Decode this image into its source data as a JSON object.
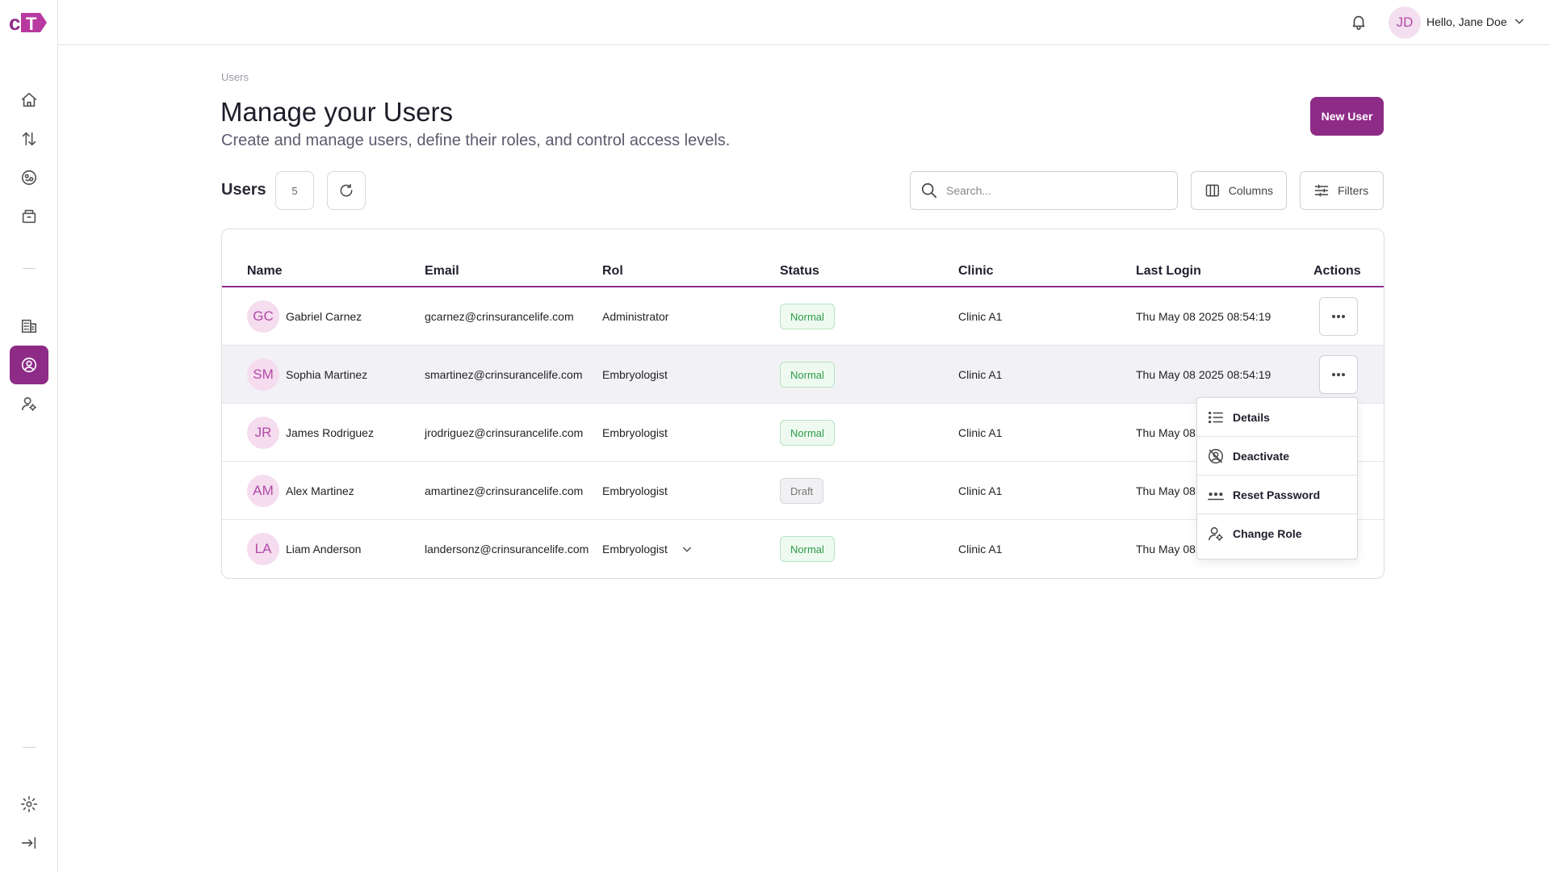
{
  "brand": {
    "logo_text": "cT",
    "accent": "#8e2b87"
  },
  "sidebar": {
    "items": [
      {
        "icon": "home-icon",
        "active": false
      },
      {
        "icon": "transfer-icon",
        "active": false
      },
      {
        "icon": "embryo-icon",
        "active": false
      },
      {
        "icon": "storage-icon",
        "active": false
      },
      {
        "icon": "building-icon",
        "active": false
      },
      {
        "icon": "user-circle-icon",
        "active": true
      },
      {
        "icon": "user-settings-icon",
        "active": false
      }
    ],
    "bottom": [
      {
        "icon": "gear-icon"
      },
      {
        "icon": "collapse-icon"
      }
    ]
  },
  "topbar": {
    "user_initials": "JD",
    "greeting": "Hello, Jane Doe"
  },
  "header": {
    "breadcrumb": "Users",
    "title": "Manage your Users",
    "subtitle": "Create and manage users, define their roles, and control access levels.",
    "new_user_label": "New User"
  },
  "toolbar": {
    "users_label": "Users",
    "count": "5",
    "search_placeholder": "Search...",
    "columns_label": "Columns",
    "filters_label": "Filters"
  },
  "table": {
    "headers": [
      "Name",
      "Email",
      "Rol",
      "Status",
      "Clinic",
      "Last Login",
      "Actions"
    ],
    "rows": [
      {
        "initials": "GC",
        "name": "Gabriel Carnez",
        "email": "gcarnez@crinsurancelife.com",
        "role": "Administrator",
        "status": "Normal",
        "clinic": "Clinic A1",
        "last_login": "Thu May 08 2025 08:54:19"
      },
      {
        "initials": "SM",
        "name": "Sophia Martinez",
        "email": "smartinez@crinsurancelife.com",
        "role": "Embryologist",
        "status": "Normal",
        "clinic": "Clinic A1",
        "last_login": "Thu May 08 2025 08:54:19"
      },
      {
        "initials": "JR",
        "name": "James Rodriguez",
        "email": "jrodriguez@crinsurancelife.com",
        "role": "Embryologist",
        "status": "Normal",
        "clinic": "Clinic A1",
        "last_login": "Thu May 08"
      },
      {
        "initials": "AM",
        "name": "Alex Martinez",
        "email": "amartinez@crinsurancelife.com",
        "role": "Embryologist",
        "status": "Draft",
        "clinic": "Clinic A1",
        "last_login": "Thu May 08"
      },
      {
        "initials": "LA",
        "name": "Liam Anderson",
        "email": "landersonz@crinsurancelife.com",
        "role": "Embryologist",
        "status": "Normal",
        "clinic": "Clinic A1",
        "last_login": "Thu May 08"
      }
    ]
  },
  "actions_menu": {
    "items": [
      "Details",
      "Deactivate",
      "Reset Password",
      "Change Role"
    ]
  }
}
